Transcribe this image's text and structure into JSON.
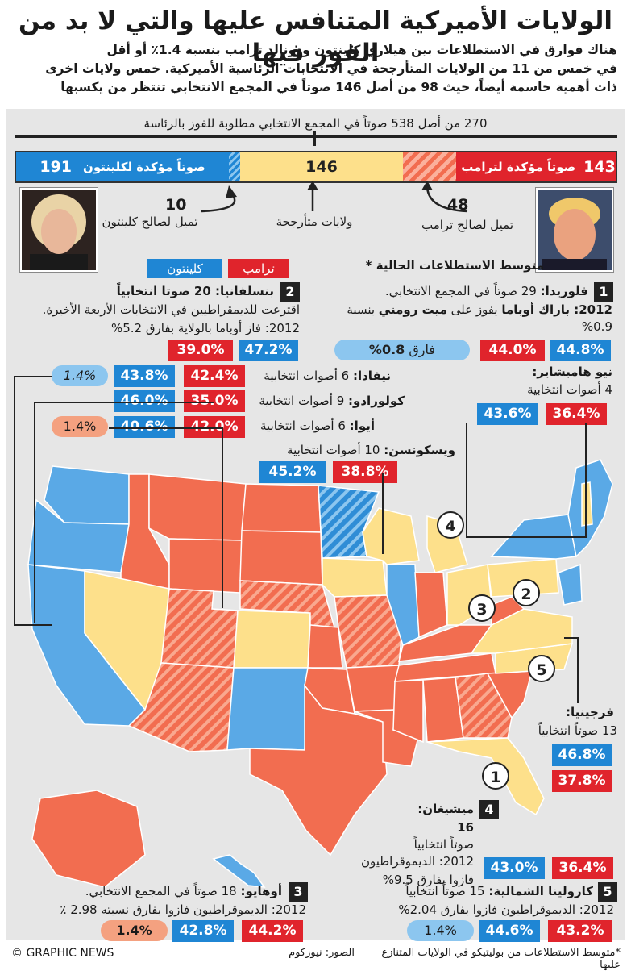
{
  "title": "الولايات الأميركية المتنافس عليها والتي لا بد من الفوز فيها",
  "subtitle_lines": [
    "هناك فوارق في الاستطلاعات بين هيلاري كلينتون ودونالد ترامب بنسبة 1.4٪ أو أقل",
    "في خمس من 11 من الولايات المتأرجحة في الانتخابات الرئاسية الأميركية. خمس ولايات اخرى",
    "ذات أهمية حاسمة أيضاً، حيث 98 من أصل 146 صوتاً في المجمع الانتخابي تنتظر من يكسبها"
  ],
  "needed_label": "270 من أصل 538 صوتاً في المجمع الانتخابي مطلوبة للفوز بالرئاسة",
  "colors": {
    "clinton": "#1f86d4",
    "trump": "#e0242c",
    "tossup": "#fde08b",
    "trump_state": "#f26d50",
    "clinton_state": "#5aa9e6",
    "band": "#e6e6e6"
  },
  "chart_data": {
    "type": "bar",
    "title": "",
    "categories": [
      "كلينتون مؤكدة",
      "تميل لصالح كلينتون",
      "ولايات متأرجحة",
      "تميل لصالح ترامب",
      "ترامب مؤكدة"
    ],
    "values": [
      191,
      10,
      146,
      48,
      143
    ],
    "total": 538,
    "needed": 270
  },
  "bar": {
    "clinton_safe_value": "191",
    "clinton_safe_label": "صوتاً مؤكدة لكلينتون",
    "tossup_value": "146",
    "trump_safe_value": "143",
    "trump_safe_label": "صوتاً مؤكدة لترامب",
    "clinton_lean_value": "10",
    "clinton_lean_label": "تميل لصالح كلينتون",
    "tossup_label": "ولايات متأرجحة",
    "trump_lean_value": "48",
    "trump_lean_label": "تميل لصالح ترامب"
  },
  "legend": {
    "title": "متوسط الاستطلاعات الحالية",
    "asterisk": "*",
    "trump": "ترامب",
    "clinton": "كلينتون"
  },
  "states": {
    "florida": {
      "num": "1",
      "name": "فلوريدا:",
      "votes": " 29 صوتاً في المجمع الانتخابي.",
      "line2a": "2012: ",
      "line2b": "باراك أوباما",
      "line2c": " يفوز على ",
      "line2d": "ميت رومني",
      "line2e": " بنسبة 0.9%",
      "clinton": "44.8%",
      "trump": "44.0%",
      "gap_label": "فارق",
      "gap": "0.8%"
    },
    "pennsylvania": {
      "num": "2",
      "name": "بنسلفانيا:",
      "votes": " 20 صوتا انتخابياً",
      "line2": "اقترعت للديمقراطيين في الانتخابات الأربعة الأخيرة.",
      "line3": "2012: فاز أوباما بالولاية بفارق 5.2%",
      "clinton": "47.2%",
      "trump": "39.0%"
    },
    "nevada": {
      "name": "نيفادا:",
      "votes": " 6 أصوات انتخابية",
      "clinton": "43.8%",
      "trump": "42.4%",
      "gap": "1.4%"
    },
    "colorado": {
      "name": "كولورادو:",
      "votes": " 9 أصوات انتخابية",
      "clinton": "46.0%",
      "trump": "35.0%"
    },
    "iowa": {
      "name": "أيوا:",
      "votes": " 6 أصوات انتخابية",
      "clinton": "40.6%",
      "trump": "42.0%",
      "gap": "1.4%"
    },
    "newhampshire": {
      "name": "نيو هامبشاير:",
      "votes": "4 أصوات انتخابية",
      "clinton": "43.6%",
      "trump": "36.4%"
    },
    "wisconsin": {
      "name": "ويسكونسن:",
      "votes": " 10 أصوات انتخابية",
      "clinton": "45.2%",
      "trump": "38.8%"
    },
    "virginia": {
      "name": "فرجينيا:",
      "votes": "13 صوتاً انتخابياً",
      "clinton": "46.8%",
      "trump": "37.8%"
    },
    "michigan": {
      "num": "4",
      "name": "ميشيغان:",
      "votes": "16",
      "votes2": "صوتاً انتخابياً",
      "line3": "2012: الديموقراطيون",
      "line4": "فازوا بفارق 9.5%",
      "clinton": "43.0%",
      "trump": "36.4%"
    },
    "ohio": {
      "num": "3",
      "name": "أوهايو:",
      "votes": " 18 صوتاً في المجمع الانتخابي.",
      "line2": "2012: الديموقراطيون فازوا بفارق نسبته 2.98 ٪",
      "clinton": "42.8%",
      "trump": "44.2%",
      "gap": "1.4%"
    },
    "northcarolina": {
      "num": "5",
      "name": "كارولينا الشمالية:",
      "votes": " 15 صوتاً انتخابياً",
      "line2": "2012: الديموقراطيون فازوا بفارق 2.04%",
      "clinton": "44.6%",
      "trump": "43.2%",
      "gap": "1.4%"
    }
  },
  "map_markers": [
    "1",
    "2",
    "3",
    "4",
    "5"
  ],
  "footer": {
    "note": "*متوسط الاستطلاعات من بوليتيكو في الولايات المتنازع عليها",
    "credit": "الصور: نيوزكوم",
    "brand": "© GRAPHIC NEWS"
  }
}
